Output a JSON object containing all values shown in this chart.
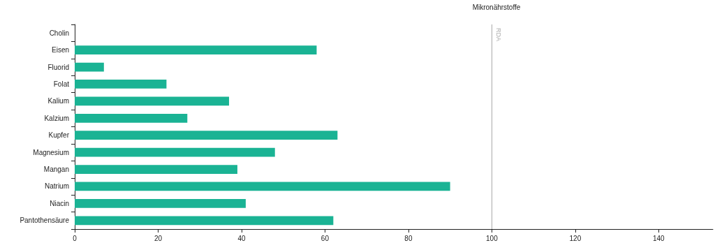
{
  "chart_data": {
    "type": "bar",
    "orientation": "horizontal",
    "title": "Mikronährstoffe",
    "categories": [
      "Cholin",
      "Eisen",
      "Fluorid",
      "Folat",
      "Kalium",
      "Kalzium",
      "Kupfer",
      "Magnesium",
      "Mangan",
      "Natrium",
      "Niacin",
      "Pantothensäure"
    ],
    "values": [
      0,
      58,
      7,
      22,
      37,
      27,
      63,
      48,
      39,
      90,
      41,
      62
    ],
    "color": "#1ab394",
    "xlim": [
      0,
      153
    ],
    "xticks": [
      0,
      20,
      40,
      60,
      80,
      100,
      120,
      140
    ],
    "grid": false,
    "ref_lines": [
      {
        "axis": "x",
        "value": 100,
        "label": "RDA",
        "color": "#aaaaaa"
      }
    ]
  }
}
